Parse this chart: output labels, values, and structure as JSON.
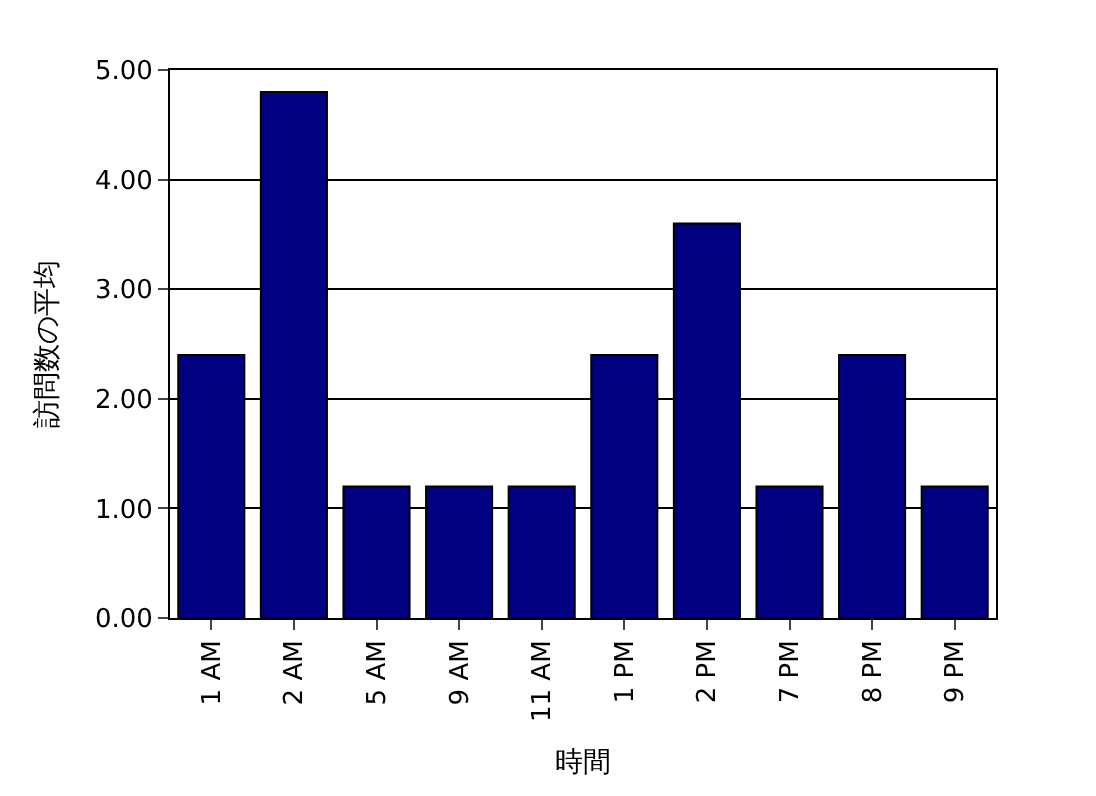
{
  "chart_data": {
    "type": "bar",
    "xlabel": "時間",
    "ylabel": "訪問数の平均",
    "categories": [
      "1 AM",
      "2 AM",
      "5 AM",
      "9 AM",
      "11 AM",
      "1 PM",
      "2 PM",
      "7 PM",
      "8 PM",
      "9 PM"
    ],
    "series": [
      {
        "color": "#000080",
        "values": [
          2.4,
          4.8,
          1.2,
          1.2,
          1.2,
          2.4,
          3.6,
          1.2,
          2.4,
          1.2
        ]
      }
    ],
    "ylim": [
      0,
      5
    ],
    "yticks": [
      {
        "value": 0,
        "label": "0.00"
      },
      {
        "value": 1,
        "label": "1.00"
      },
      {
        "value": 2,
        "label": "2.00"
      },
      {
        "value": 3,
        "label": "3.00"
      },
      {
        "value": 4,
        "label": "4.00"
      },
      {
        "value": 5,
        "label": "5.00"
      }
    ],
    "grid": "y",
    "legend": false
  }
}
